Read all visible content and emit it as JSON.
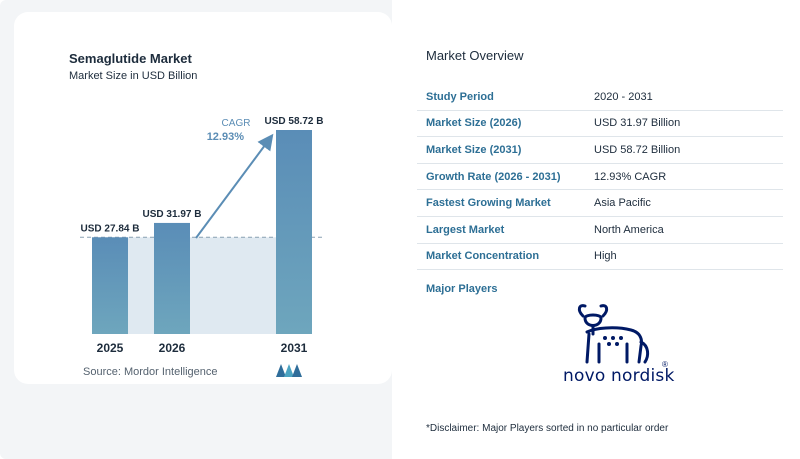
{
  "chart_data": {
    "type": "bar",
    "title": "Semaglutide Market",
    "subtitle": "Market Size in USD Billion",
    "categories": [
      "2025",
      "2026",
      "2031"
    ],
    "values": [
      27.84,
      31.97,
      58.72
    ],
    "value_labels": [
      "USD 27.84 B",
      "USD 31.97 B",
      "USD 58.72 B"
    ],
    "ylim": [
      0,
      60
    ],
    "grid": false,
    "reference_line_value": 27.84,
    "cagr": {
      "label": "CAGR",
      "value": "12.93%"
    },
    "colors": {
      "bar_top": "#5a8db7",
      "bar_bottom": "#6ea6bd",
      "shade": "#dfe9f1",
      "arrow": "#5b8db5",
      "cagr_text": "#5b8db5"
    }
  },
  "source": "Source:  Mordor Intelligence",
  "overview": {
    "title": "Market Overview",
    "rows": [
      {
        "key": "Study Period",
        "value": "2020 - 2031"
      },
      {
        "key": "Market Size (2026)",
        "value": "USD 31.97 Billion"
      },
      {
        "key": "Market Size (2031)",
        "value": "USD 58.72 Billion"
      },
      {
        "key": "Growth Rate (2026 - 2031)",
        "value": "12.93% CAGR"
      },
      {
        "key": "Fastest Growing Market",
        "value": "Asia Pacific"
      },
      {
        "key": "Largest Market",
        "value": "North America"
      },
      {
        "key": "Market Concentration",
        "value": "High"
      }
    ],
    "players_label": "Major Players",
    "player_logo_text": "novo nordisk",
    "player_logo_mark": "®",
    "disclaimer": "*Disclaimer: Major Players sorted in no particular order"
  }
}
